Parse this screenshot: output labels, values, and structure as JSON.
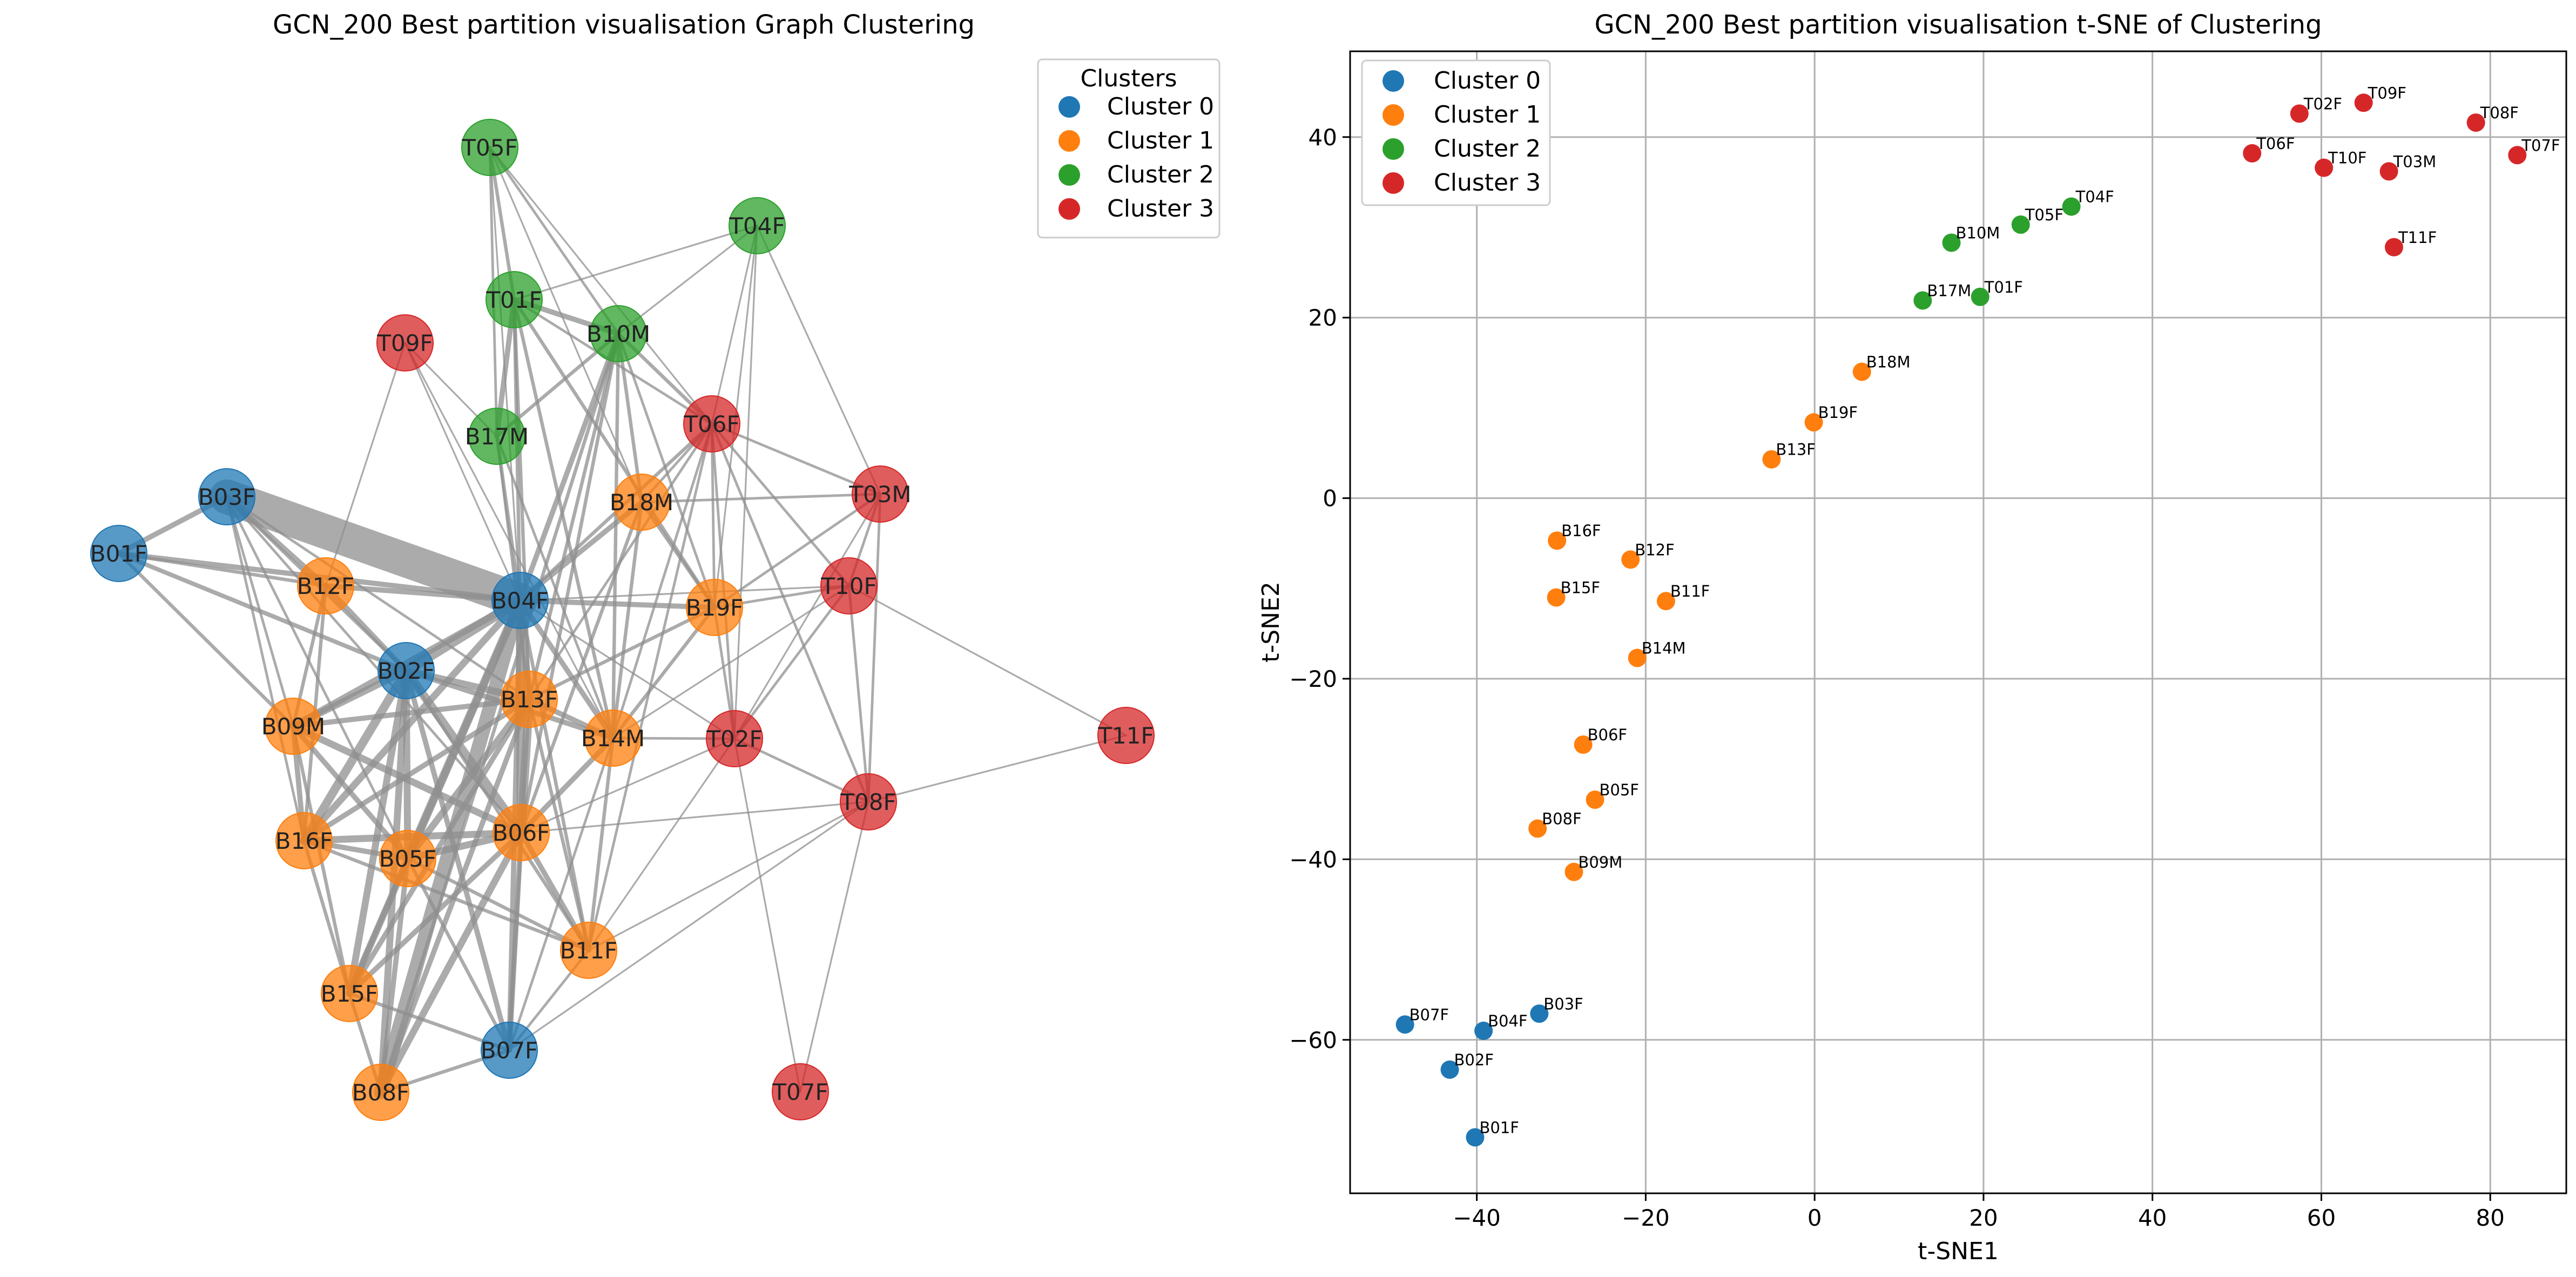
{
  "chart_data": [
    {
      "type": "network",
      "title": "GCN_200 Best partition visualisation Graph Clustering",
      "legend": {
        "title": "Clusters",
        "placement": "top-right",
        "entries": [
          "Cluster 0",
          "Cluster 1",
          "Cluster 2",
          "Cluster 3"
        ]
      },
      "colors": [
        "#1f77b4",
        "#ff7f0e",
        "#2ca02c",
        "#d62728"
      ],
      "nodes": [
        {
          "id": "B01F",
          "cluster": 0
        },
        {
          "id": "B02F",
          "cluster": 0
        },
        {
          "id": "B03F",
          "cluster": 0
        },
        {
          "id": "B04F",
          "cluster": 0
        },
        {
          "id": "B07F",
          "cluster": 0
        },
        {
          "id": "B05F",
          "cluster": 1
        },
        {
          "id": "B06F",
          "cluster": 1
        },
        {
          "id": "B08F",
          "cluster": 1
        },
        {
          "id": "B09M",
          "cluster": 1
        },
        {
          "id": "B11F",
          "cluster": 1
        },
        {
          "id": "B12F",
          "cluster": 1
        },
        {
          "id": "B13F",
          "cluster": 1
        },
        {
          "id": "B14M",
          "cluster": 1
        },
        {
          "id": "B15F",
          "cluster": 1
        },
        {
          "id": "B16F",
          "cluster": 1
        },
        {
          "id": "B18M",
          "cluster": 1
        },
        {
          "id": "B19F",
          "cluster": 1
        },
        {
          "id": "T01F",
          "cluster": 2
        },
        {
          "id": "T04F",
          "cluster": 2
        },
        {
          "id": "T05F",
          "cluster": 2
        },
        {
          "id": "B10M",
          "cluster": 2
        },
        {
          "id": "B17M",
          "cluster": 2
        },
        {
          "id": "T02F",
          "cluster": 3
        },
        {
          "id": "T03M",
          "cluster": 3
        },
        {
          "id": "T06F",
          "cluster": 3
        },
        {
          "id": "T07F",
          "cluster": 3
        },
        {
          "id": "T08F",
          "cluster": 3
        },
        {
          "id": "T09F",
          "cluster": 3
        },
        {
          "id": "T10F",
          "cluster": 3
        },
        {
          "id": "T11F",
          "cluster": 3
        }
      ],
      "edges": [
        [
          "B03F",
          "B04F",
          20
        ],
        [
          "B03F",
          "B01F",
          3
        ],
        [
          "B03F",
          "B12F",
          3
        ],
        [
          "B03F",
          "B02F",
          2
        ],
        [
          "B03F",
          "B09M",
          1.5
        ],
        [
          "B03F",
          "B13F",
          1.5
        ],
        [
          "B03F",
          "B06F",
          1.5
        ],
        [
          "B03F",
          "B16F",
          1.5
        ],
        [
          "B03F",
          "B05F",
          1.5
        ],
        [
          "B01F",
          "B04F",
          3
        ],
        [
          "B01F",
          "B02F",
          2.5
        ],
        [
          "B01F",
          "B09M",
          2
        ],
        [
          "B01F",
          "B12F",
          2
        ],
        [
          "B12F",
          "B04F",
          3
        ],
        [
          "B12F",
          "B09M",
          2
        ],
        [
          "B12F",
          "B02F",
          3
        ],
        [
          "B12F",
          "B16F",
          2
        ],
        [
          "B04F",
          "B02F",
          6
        ],
        [
          "B04F",
          "B13F",
          4
        ],
        [
          "B04F",
          "B06F",
          5
        ],
        [
          "B04F",
          "B05F",
          5
        ],
        [
          "B04F",
          "B09M",
          4
        ],
        [
          "B04F",
          "B16F",
          4
        ],
        [
          "B04F",
          "B15F",
          4
        ],
        [
          "B04F",
          "B08F",
          8
        ],
        [
          "B04F",
          "B14M",
          3
        ],
        [
          "B04F",
          "B19F",
          3
        ],
        [
          "B04F",
          "B18M",
          3
        ],
        [
          "B04F",
          "B11F",
          2
        ],
        [
          "B04F",
          "B07F",
          3
        ],
        [
          "B04F",
          "B10M",
          3
        ],
        [
          "B04F",
          "B17M",
          2
        ],
        [
          "B04F",
          "T01F",
          2
        ],
        [
          "B04F",
          "T06F",
          2
        ],
        [
          "B04F",
          "T05F",
          1
        ],
        [
          "B04F",
          "T10F",
          1
        ],
        [
          "B04F",
          "T02F",
          1
        ],
        [
          "B02F",
          "B13F",
          4
        ],
        [
          "B02F",
          "B06F",
          5
        ],
        [
          "B02F",
          "B05F",
          4
        ],
        [
          "B02F",
          "B09M",
          4
        ],
        [
          "B02F",
          "B16F",
          5
        ],
        [
          "B02F",
          "B15F",
          4
        ],
        [
          "B02F",
          "B08F",
          4
        ],
        [
          "B02F",
          "B14M",
          3
        ],
        [
          "B02F",
          "B07F",
          3
        ],
        [
          "B02F",
          "B11F",
          2
        ],
        [
          "B13F",
          "B06F",
          5
        ],
        [
          "B13F",
          "B05F",
          4
        ],
        [
          "B13F",
          "B09M",
          3
        ],
        [
          "B13F",
          "B16F",
          3
        ],
        [
          "B13F",
          "B14M",
          3
        ],
        [
          "B13F",
          "B08F",
          3
        ],
        [
          "B13F",
          "B15F",
          3
        ],
        [
          "B13F",
          "B19F",
          2
        ],
        [
          "B06F",
          "B05F",
          4
        ],
        [
          "B06F",
          "B16F",
          4
        ],
        [
          "B06F",
          "B09M",
          4
        ],
        [
          "B06F",
          "B15F",
          3
        ],
        [
          "B06F",
          "B08F",
          4
        ],
        [
          "B06F",
          "B11F",
          3
        ],
        [
          "B06F",
          "B07F",
          3
        ],
        [
          "B06F",
          "B14M",
          3
        ],
        [
          "B06F",
          "B18M",
          2
        ],
        [
          "B06F",
          "B10M",
          2
        ],
        [
          "B05F",
          "B16F",
          3
        ],
        [
          "B05F",
          "B09M",
          3
        ],
        [
          "B05F",
          "B15F",
          3
        ],
        [
          "B05F",
          "B08F",
          3
        ],
        [
          "B05F",
          "B07F",
          2
        ],
        [
          "B05F",
          "B11F",
          2
        ],
        [
          "B09M",
          "B16F",
          3
        ],
        [
          "B09M",
          "B15F",
          2
        ],
        [
          "B16F",
          "B15F",
          2
        ],
        [
          "B15F",
          "B08F",
          2
        ],
        [
          "B15F",
          "B07F",
          2
        ],
        [
          "B08F",
          "B07F",
          2
        ],
        [
          "B11F",
          "B07F",
          1.5
        ],
        [
          "B14M",
          "B19F",
          2
        ],
        [
          "B14M",
          "B18M",
          2
        ],
        [
          "B14M",
          "B11F",
          2
        ],
        [
          "B14M",
          "T02F",
          1.5
        ],
        [
          "B14M",
          "T06F",
          1.5
        ],
        [
          "B19F",
          "B18M",
          2
        ],
        [
          "B19F",
          "T10F",
          1.5
        ],
        [
          "B19F",
          "T06F",
          1.5
        ],
        [
          "B19F",
          "T02F",
          1.5
        ],
        [
          "B19F",
          "T03M",
          1.5
        ],
        [
          "B18M",
          "T06F",
          1.5
        ],
        [
          "B18M",
          "B10M",
          2
        ],
        [
          "B18M",
          "T03M",
          1.5
        ],
        [
          "T01F",
          "B10M",
          3
        ],
        [
          "T01F",
          "B17M",
          3
        ],
        [
          "T01F",
          "T05F",
          2
        ],
        [
          "T01F",
          "B13F",
          2
        ],
        [
          "T01F",
          "B14M",
          2
        ],
        [
          "T01F",
          "B19F",
          2
        ],
        [
          "T01F",
          "T06F",
          1.5
        ],
        [
          "B10M",
          "B17M",
          2
        ],
        [
          "B10M",
          "T05F",
          1.5
        ],
        [
          "B10M",
          "T06F",
          2
        ],
        [
          "B10M",
          "B08F",
          2
        ],
        [
          "B10M",
          "B13F",
          2
        ],
        [
          "B10M",
          "B14M",
          2
        ],
        [
          "B10M",
          "B19F",
          1.5
        ],
        [
          "B17M",
          "T05F",
          1.5
        ],
        [
          "B17M",
          "B14M",
          1.5
        ],
        [
          "B17M",
          "B13F",
          1.5
        ],
        [
          "T04F",
          "T01F",
          1
        ],
        [
          "T04F",
          "B10M",
          1
        ],
        [
          "T04F",
          "T06F",
          1
        ],
        [
          "T04F",
          "B19F",
          1
        ],
        [
          "T04F",
          "T02F",
          1
        ],
        [
          "T05F",
          "T06F",
          1
        ],
        [
          "T05F",
          "B18M",
          1
        ],
        [
          "T09F",
          "B04F",
          1
        ],
        [
          "T09F",
          "B17M",
          1
        ],
        [
          "T09F",
          "B14M",
          1
        ],
        [
          "T09F",
          "B12F",
          1
        ],
        [
          "T06F",
          "T02F",
          1.5
        ],
        [
          "T06F",
          "T03M",
          1.5
        ],
        [
          "T06F",
          "T10F",
          1.5
        ],
        [
          "T06F",
          "T08F",
          1.5
        ],
        [
          "T06F",
          "B11F",
          1.5
        ],
        [
          "T06F",
          "B13F",
          1.5
        ],
        [
          "T03M",
          "T10F",
          1.5
        ],
        [
          "T03M",
          "T02F",
          1
        ],
        [
          "T03M",
          "T08F",
          1.5
        ],
        [
          "T03M",
          "T04F",
          1
        ],
        [
          "T10F",
          "T02F",
          1.5
        ],
        [
          "T10F",
          "T08F",
          1.5
        ],
        [
          "T10F",
          "T11F",
          1
        ],
        [
          "T10F",
          "B14M",
          1
        ],
        [
          "T02F",
          "T08F",
          1.5
        ],
        [
          "T02F",
          "B11F",
          1
        ],
        [
          "T02F",
          "B06F",
          1
        ],
        [
          "T02F",
          "T07F",
          1
        ],
        [
          "T08F",
          "T11F",
          1
        ],
        [
          "T08F",
          "B06F",
          1
        ],
        [
          "T08F",
          "B11F",
          1
        ],
        [
          "T08F",
          "T07F",
          1
        ],
        [
          "T08F",
          "B07F",
          1
        ],
        [
          "B11F",
          "B13F",
          2
        ],
        [
          "B11F",
          "B16F",
          2
        ],
        [
          "B07F",
          "B14M",
          1.5
        ],
        [
          "B07F",
          "B13F",
          2
        ]
      ]
    },
    {
      "type": "scatter",
      "title": "GCN_200 Best partition visualisation t-SNE of Clustering",
      "xlabel": "t-SNE1",
      "ylabel": "t-SNE2",
      "xlim": [
        -55,
        89
      ],
      "ylim": [
        -77,
        49.5
      ],
      "xticks": [
        -40,
        -20,
        0,
        20,
        40,
        60,
        80
      ],
      "yticks": [
        -60,
        -40,
        -20,
        0,
        20,
        40
      ],
      "xtick_labels": [
        "−40",
        "−20",
        "0",
        "20",
        "40",
        "60",
        "80"
      ],
      "ytick_labels": [
        "−60",
        "−40",
        "−20",
        "0",
        "20",
        "40"
      ],
      "grid": true,
      "legend": {
        "placement": "top-left",
        "entries": [
          "Cluster 0",
          "Cluster 1",
          "Cluster 2",
          "Cluster 3"
        ]
      },
      "colors": [
        "#1f77b4",
        "#ff7f0e",
        "#2ca02c",
        "#d62728"
      ],
      "points": [
        {
          "label": "B07F",
          "x": -48.5,
          "y": -58.3,
          "cluster": 0
        },
        {
          "label": "B04F",
          "x": -39.2,
          "y": -59.0,
          "cluster": 0
        },
        {
          "label": "B03F",
          "x": -32.6,
          "y": -57.1,
          "cluster": 0
        },
        {
          "label": "B02F",
          "x": -43.2,
          "y": -63.3,
          "cluster": 0
        },
        {
          "label": "B01F",
          "x": -40.2,
          "y": -70.8,
          "cluster": 0
        },
        {
          "label": "B16F",
          "x": -30.5,
          "y": -4.7,
          "cluster": 1
        },
        {
          "label": "B12F",
          "x": -21.8,
          "y": -6.8,
          "cluster": 1
        },
        {
          "label": "B15F",
          "x": -30.6,
          "y": -11.0,
          "cluster": 1
        },
        {
          "label": "B11F",
          "x": -17.6,
          "y": -11.4,
          "cluster": 1
        },
        {
          "label": "B14M",
          "x": -21.0,
          "y": -17.7,
          "cluster": 1
        },
        {
          "label": "B06F",
          "x": -27.4,
          "y": -27.3,
          "cluster": 1
        },
        {
          "label": "B05F",
          "x": -26.0,
          "y": -33.4,
          "cluster": 1
        },
        {
          "label": "B08F",
          "x": -32.8,
          "y": -36.6,
          "cluster": 1
        },
        {
          "label": "B09M",
          "x": -28.5,
          "y": -41.4,
          "cluster": 1
        },
        {
          "label": "B18M",
          "x": 5.6,
          "y": 14.0,
          "cluster": 1
        },
        {
          "label": "B19F",
          "x": -0.1,
          "y": 8.4,
          "cluster": 1
        },
        {
          "label": "B13F",
          "x": -5.1,
          "y": 4.3,
          "cluster": 1
        },
        {
          "label": "B10M",
          "x": 16.2,
          "y": 28.3,
          "cluster": 2
        },
        {
          "label": "T05F",
          "x": 24.4,
          "y": 30.3,
          "cluster": 2
        },
        {
          "label": "T04F",
          "x": 30.4,
          "y": 32.3,
          "cluster": 2
        },
        {
          "label": "B17M",
          "x": 12.8,
          "y": 21.9,
          "cluster": 2
        },
        {
          "label": "T01F",
          "x": 19.6,
          "y": 22.3,
          "cluster": 2
        },
        {
          "label": "T02F",
          "x": 57.4,
          "y": 42.6,
          "cluster": 3
        },
        {
          "label": "T09F",
          "x": 65.0,
          "y": 43.8,
          "cluster": 3
        },
        {
          "label": "T08F",
          "x": 78.3,
          "y": 41.6,
          "cluster": 3
        },
        {
          "label": "T07F",
          "x": 83.2,
          "y": 38.0,
          "cluster": 3
        },
        {
          "label": "T06F",
          "x": 51.8,
          "y": 38.2,
          "cluster": 3
        },
        {
          "label": "T10F",
          "x": 60.3,
          "y": 36.6,
          "cluster": 3
        },
        {
          "label": "T03M",
          "x": 68.0,
          "y": 36.2,
          "cluster": 3
        },
        {
          "label": "T11F",
          "x": 68.6,
          "y": 27.8,
          "cluster": 3
        }
      ]
    }
  ]
}
